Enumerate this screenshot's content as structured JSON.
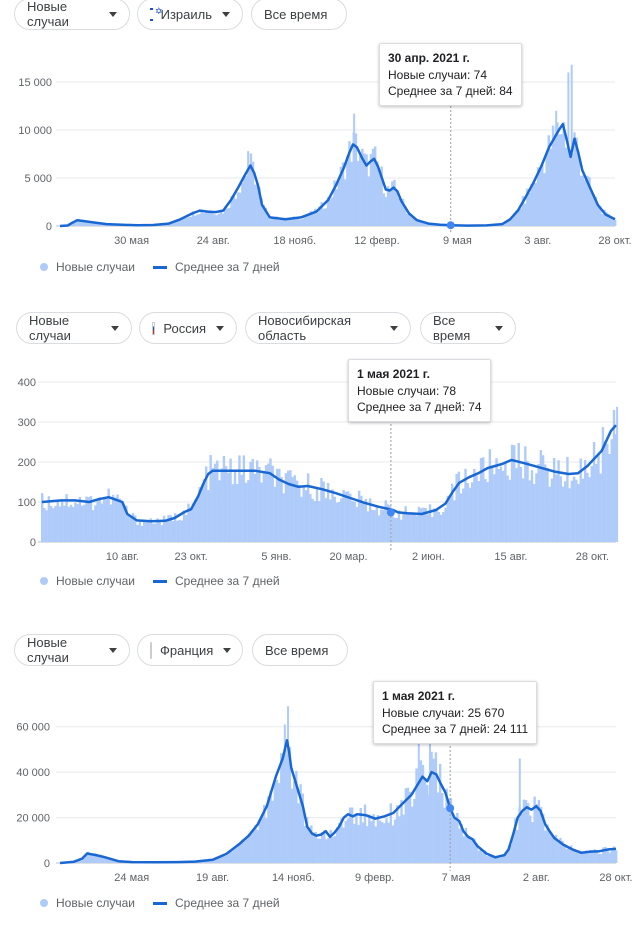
{
  "charts": [
    {
      "metric_label": "Новые случаи",
      "location_label": "Израиль",
      "flag": "il-flag-icon",
      "region_label": "",
      "period_label": "Все время",
      "tooltip": {
        "date": "30 апр. 2021 г.",
        "new_cases": "Новые случаи: 74",
        "avg_7": "Среднее за 7 дней: 84"
      },
      "legend": {
        "bars": "Новые случаи",
        "line": "Среднее за 7 дней"
      }
    },
    {
      "metric_label": "Новые случаи",
      "location_label": "Россия",
      "flag": "ru-flag-icon",
      "region_label": "Новосибирская область",
      "period_label": "Все время",
      "tooltip": {
        "date": "1 мая 2021 г.",
        "new_cases": "Новые случаи: 78",
        "avg_7": "Среднее за 7 дней: 74"
      },
      "legend": {
        "bars": "Новые случаи",
        "line": "Среднее за 7 дней"
      }
    },
    {
      "metric_label": "Новые случаи",
      "location_label": "Франция",
      "flag": "fr-flag-icon",
      "region_label": "",
      "period_label": "Все время",
      "tooltip": {
        "date": "1 мая 2021 г.",
        "new_cases": "Новые случаи: 25 670",
        "avg_7": "Среднее за 7 дней: 24 111"
      },
      "legend": {
        "bars": "Новые случаи",
        "line": "Среднее за 7 дней"
      }
    }
  ],
  "chart_data": [
    {
      "type": "area",
      "location": "Израиль",
      "colors": {
        "bars": "#aecbfa",
        "line": "#1967d2"
      },
      "yticks": [
        0,
        5000,
        10000,
        15000
      ],
      "ytick_labels": [
        "0",
        "5 000",
        "10 000",
        "15 000"
      ],
      "ylim": [
        0,
        17500
      ],
      "xticks": [
        "30 мая",
        "24 авг.",
        "18 нояб.",
        "12 февр.",
        "9 мая",
        "3 авг.",
        "28 окт."
      ],
      "xlim": [
        0,
        100
      ],
      "xtick_positions": [
        12.9,
        27.6,
        42.3,
        57.1,
        71.6,
        86.1,
        100
      ],
      "highlight": {
        "x": 70.4,
        "y": 84
      },
      "series_avg": [
        [
          0,
          0
        ],
        [
          1.4,
          50
        ],
        [
          2.1,
          300
        ],
        [
          3.1,
          600
        ],
        [
          4.5,
          500
        ],
        [
          6.3,
          350
        ],
        [
          8.4,
          200
        ],
        [
          11.2,
          120
        ],
        [
          14.0,
          80
        ],
        [
          16.8,
          100
        ],
        [
          19.6,
          250
        ],
        [
          21.7,
          700
        ],
        [
          23.8,
          1300
        ],
        [
          25.2,
          1600
        ],
        [
          26.6,
          1500
        ],
        [
          28.0,
          1450
        ],
        [
          29.4,
          1600
        ],
        [
          30.8,
          2700
        ],
        [
          32.2,
          4100
        ],
        [
          33.2,
          5200
        ],
        [
          34.3,
          6300
        ],
        [
          35.0,
          5500
        ],
        [
          35.7,
          4200
        ],
        [
          36.4,
          2200
        ],
        [
          37.8,
          900
        ],
        [
          40.6,
          700
        ],
        [
          43.4,
          900
        ],
        [
          46.2,
          1500
        ],
        [
          48.3,
          2700
        ],
        [
          49.7,
          4200
        ],
        [
          51.1,
          6000
        ],
        [
          52.1,
          7600
        ],
        [
          52.8,
          8500
        ],
        [
          53.5,
          8200
        ],
        [
          54.5,
          7000
        ],
        [
          55.2,
          6300
        ],
        [
          55.9,
          6700
        ],
        [
          56.6,
          7000
        ],
        [
          57.3,
          6200
        ],
        [
          58.0,
          5000
        ],
        [
          58.7,
          3800
        ],
        [
          59.4,
          3700
        ],
        [
          60.1,
          4000
        ],
        [
          60.8,
          3600
        ],
        [
          61.5,
          2600
        ],
        [
          62.9,
          1300
        ],
        [
          64.3,
          600
        ],
        [
          66.4,
          250
        ],
        [
          68.5,
          120
        ],
        [
          70.4,
          84
        ],
        [
          73.4,
          40
        ],
        [
          76.9,
          60
        ],
        [
          79.7,
          200
        ],
        [
          81.1,
          700
        ],
        [
          82.5,
          1600
        ],
        [
          83.9,
          3000
        ],
        [
          85.3,
          4500
        ],
        [
          86.7,
          6200
        ],
        [
          88.1,
          8200
        ],
        [
          89.2,
          9300
        ],
        [
          89.9,
          10000
        ],
        [
          90.6,
          10600
        ],
        [
          91.3,
          9000
        ],
        [
          92.0,
          7200
        ],
        [
          92.7,
          9100
        ],
        [
          93.4,
          7600
        ],
        [
          94.1,
          5800
        ],
        [
          95.5,
          4000
        ],
        [
          96.9,
          2200
        ],
        [
          98.3,
          1200
        ],
        [
          100,
          700
        ]
      ],
      "peaks_raw": [
        [
          33.9,
          7800
        ],
        [
          53.0,
          11700
        ],
        [
          89.4,
          12000
        ],
        [
          91.6,
          16000
        ],
        [
          92.2,
          16800
        ]
      ]
    },
    {
      "type": "area",
      "location": "Россия — Новосибирская область",
      "colors": {
        "bars": "#aecbfa",
        "line": "#1967d2"
      },
      "yticks": [
        0,
        100,
        200,
        300,
        400
      ],
      "ytick_labels": [
        "0",
        "100",
        "200",
        "300",
        "400"
      ],
      "ylim": [
        0,
        400
      ],
      "xticks": [
        "10 авг.",
        "23 окт.",
        "5 янв.",
        "20 мар.",
        "2 июн.",
        "15 авг.",
        "28 окт."
      ],
      "xlim": [
        0,
        100
      ],
      "xtick_positions": [
        14.6,
        27.1,
        42.6,
        55.7,
        70.2,
        85.2,
        100
      ],
      "highlight": {
        "x": 63.4,
        "y": 74
      },
      "series_avg": [
        [
          0,
          100
        ],
        [
          3.5,
          104
        ],
        [
          6.0,
          104
        ],
        [
          8.6,
          100
        ],
        [
          10.3,
          107
        ],
        [
          12.1,
          112
        ],
        [
          14.6,
          100
        ],
        [
          15.5,
          70
        ],
        [
          17.2,
          54
        ],
        [
          19.8,
          52
        ],
        [
          22.4,
          53
        ],
        [
          24.1,
          60
        ],
        [
          25.9,
          75
        ],
        [
          27.1,
          82
        ],
        [
          28.4,
          115
        ],
        [
          29.3,
          145
        ],
        [
          30.2,
          170
        ],
        [
          31.0,
          178
        ],
        [
          34.5,
          178
        ],
        [
          38.8,
          178
        ],
        [
          41.4,
          172
        ],
        [
          43.1,
          156
        ],
        [
          44.8,
          145
        ],
        [
          46.6,
          138
        ],
        [
          48.3,
          140
        ],
        [
          50.9,
          132
        ],
        [
          53.4,
          122
        ],
        [
          56.0,
          110
        ],
        [
          58.6,
          98
        ],
        [
          61.2,
          88
        ],
        [
          63.8,
          80
        ],
        [
          64.7,
          74
        ],
        [
          66.4,
          72
        ],
        [
          69.0,
          70
        ],
        [
          71.6,
          80
        ],
        [
          73.3,
          96
        ],
        [
          74.6,
          125
        ],
        [
          75.8,
          148
        ],
        [
          77.6,
          162
        ],
        [
          79.3,
          172
        ],
        [
          81.0,
          185
        ],
        [
          83.6,
          195
        ],
        [
          85.3,
          205
        ],
        [
          86.2,
          202
        ],
        [
          87.9,
          196
        ],
        [
          90.5,
          186
        ],
        [
          93.1,
          176
        ],
        [
          95.7,
          170
        ],
        [
          97.4,
          172
        ],
        [
          99.1,
          190
        ],
        [
          101.7,
          228
        ],
        [
          103.4,
          278
        ],
        [
          104.3,
          292
        ]
      ],
      "peaks_raw": [
        [
          104.5,
          338
        ]
      ]
    },
    {
      "type": "area",
      "location": "Франция",
      "colors": {
        "bars": "#aecbfa",
        "line": "#1967d2"
      },
      "yticks": [
        0,
        20000,
        40000,
        60000
      ],
      "ytick_labels": [
        "0",
        "20 000",
        "40 000",
        "60 000"
      ],
      "ylim": [
        0,
        70000
      ],
      "xticks": [
        "24 мая",
        "19 авг.",
        "14 нояб.",
        "9 февр.",
        "7 мая",
        "2 авг.",
        "28 окт."
      ],
      "xlim": [
        0,
        100
      ],
      "xtick_positions": [
        13.5,
        28.7,
        43.9,
        59.2,
        74.5,
        89.6,
        104.6
      ],
      "highlight": {
        "x": 73.4,
        "y": 24111
      },
      "series_avg": [
        [
          0,
          0
        ],
        [
          2.5,
          500
        ],
        [
          4.2,
          2000
        ],
        [
          5.1,
          4200
        ],
        [
          6.8,
          3500
        ],
        [
          8.5,
          2500
        ],
        [
          11.0,
          800
        ],
        [
          13.5,
          400
        ],
        [
          17.8,
          300
        ],
        [
          22.0,
          400
        ],
        [
          25.4,
          600
        ],
        [
          28.7,
          1400
        ],
        [
          31.3,
          4000
        ],
        [
          33.8,
          8500
        ],
        [
          35.5,
          12000
        ],
        [
          37.2,
          17000
        ],
        [
          38.9,
          25000
        ],
        [
          40.6,
          38000
        ],
        [
          41.9,
          46000
        ],
        [
          42.7,
          54000
        ],
        [
          43.1,
          49000
        ],
        [
          43.5,
          42000
        ],
        [
          44.4,
          35000
        ],
        [
          45.7,
          25000
        ],
        [
          46.5,
          16000
        ],
        [
          47.4,
          13000
        ],
        [
          48.2,
          12000
        ],
        [
          49.1,
          12500
        ],
        [
          50.0,
          14000
        ],
        [
          50.8,
          11500
        ],
        [
          51.7,
          13500
        ],
        [
          52.5,
          16000
        ],
        [
          53.4,
          20000
        ],
        [
          54.2,
          21500
        ],
        [
          55.1,
          20500
        ],
        [
          55.9,
          21500
        ],
        [
          57.6,
          21000
        ],
        [
          59.3,
          19500
        ],
        [
          61.0,
          20500
        ],
        [
          62.7,
          22000
        ],
        [
          64.4,
          26000
        ],
        [
          66.1,
          30000
        ],
        [
          67.4,
          35000
        ],
        [
          68.2,
          38000
        ],
        [
          69.1,
          36000
        ],
        [
          69.9,
          40000
        ],
        [
          70.8,
          39000
        ],
        [
          71.6,
          35000
        ],
        [
          72.5,
          31000
        ],
        [
          73.4,
          24111
        ],
        [
          74.2,
          20000
        ],
        [
          75.1,
          18500
        ],
        [
          75.9,
          14000
        ],
        [
          76.8,
          11500
        ],
        [
          77.6,
          10500
        ],
        [
          78.5,
          7500
        ],
        [
          80.2,
          4200
        ],
        [
          81.9,
          2500
        ],
        [
          83.6,
          3500
        ],
        [
          84.4,
          6000
        ],
        [
          85.3,
          13000
        ],
        [
          86.1,
          20000
        ],
        [
          87.0,
          23000
        ],
        [
          87.8,
          24500
        ],
        [
          88.7,
          23500
        ],
        [
          89.6,
          25000
        ],
        [
          90.4,
          23000
        ],
        [
          91.3,
          17000
        ],
        [
          92.1,
          14000
        ],
        [
          93.0,
          11000
        ],
        [
          94.7,
          8000
        ],
        [
          96.4,
          6000
        ],
        [
          98.1,
          4500
        ],
        [
          99.8,
          5000
        ],
        [
          101.5,
          5200
        ],
        [
          103.2,
          6000
        ],
        [
          104.6,
          6200
        ]
      ],
      "peaks_raw": [
        [
          42.3,
          61000
        ],
        [
          42.9,
          69000
        ],
        [
          67.5,
          57000
        ],
        [
          69.6,
          59000
        ],
        [
          86.5,
          46000
        ]
      ]
    }
  ]
}
